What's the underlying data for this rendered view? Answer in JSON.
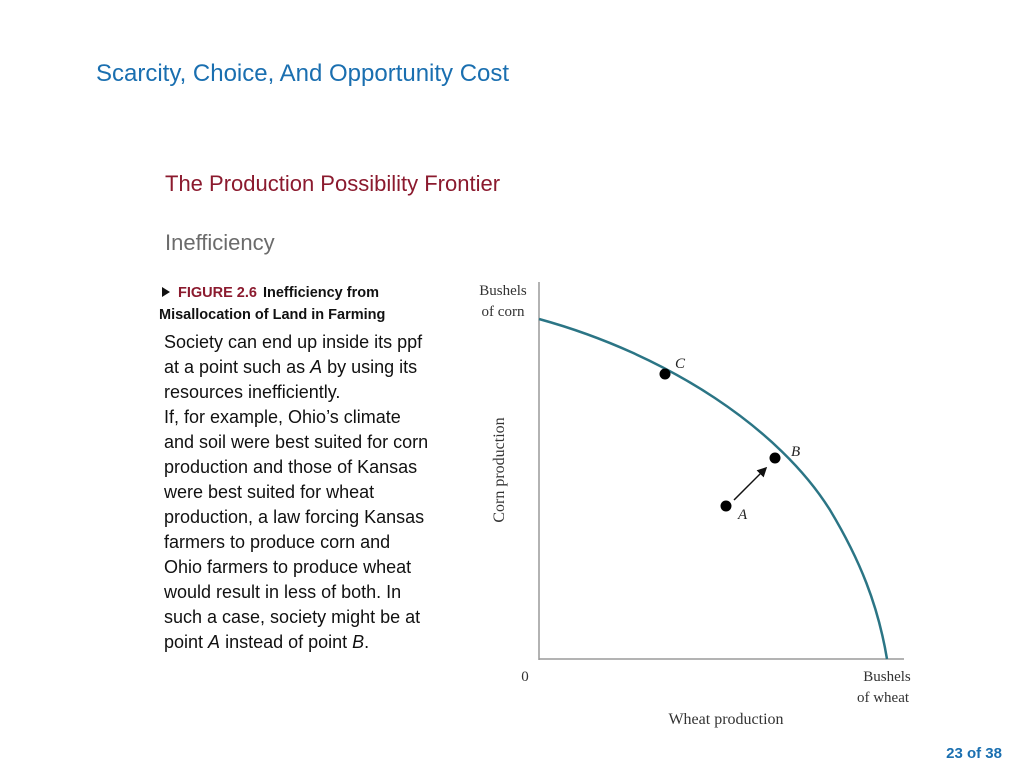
{
  "slide": {
    "title": "Scarcity, Choice, And Opportunity Cost",
    "section_heading": "The Production Possibility Frontier",
    "subheading": "Inefficiency",
    "figure_number": "FIGURE 2.6",
    "figure_title": "Inefficiency from Misallocation of Land in Farming",
    "paragraph_1": {
      "before": "Society can end up inside its ppf  at a point such as ",
      "italic": "A",
      "after": " by using its resources inefficiently."
    },
    "paragraph_2": {
      "before": "If, for example, Ohio’s climate and soil were best suited for corn production and those of Kansas were best suited for wheat production, a law forcing Kansas farmers to produce corn and Ohio farmers to produce wheat would result in less of both. In such a case, society might be at point ",
      "italic_1": "A",
      "middle": " instead of point ",
      "italic_2": "B",
      "after": "."
    },
    "slide_number": "23 of 38"
  },
  "chart_data": {
    "type": "line",
    "y_axis_top_label_line1": "Bushels",
    "y_axis_top_label_line2": "of corn",
    "ylabel": "Corn production",
    "x_axis_end_label_line1": "Bushels",
    "x_axis_end_label_line2": "of wheat",
    "xlabel": "Wheat production",
    "origin_label": "0",
    "tick_labels": false,
    "grid": false,
    "frontier_color": "#2b7585",
    "points": [
      {
        "label": "C",
        "on_frontier": true
      },
      {
        "label": "B",
        "on_frontier": true
      },
      {
        "label": "A",
        "on_frontier": false
      }
    ],
    "arrow": {
      "from": "A",
      "to": "B"
    }
  }
}
